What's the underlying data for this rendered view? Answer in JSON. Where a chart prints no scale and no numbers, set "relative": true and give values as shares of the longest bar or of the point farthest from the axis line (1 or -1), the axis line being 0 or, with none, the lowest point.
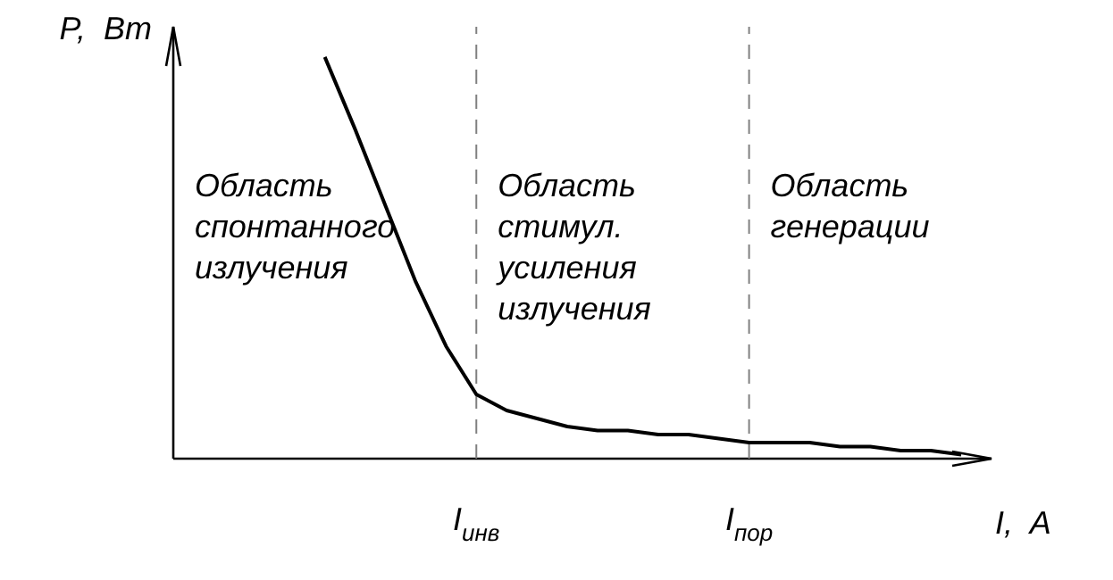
{
  "chart_data": {
    "type": "line",
    "relative": true,
    "xlabel": "I,  A",
    "ylabel": "P,  Вт",
    "marker": "none",
    "line_style": "solid",
    "categories": [
      null,
      null,
      null,
      null,
      null,
      null,
      null,
      null,
      null,
      null,
      "I$_{инв}$",
      null,
      null,
      null,
      null,
      null,
      null,
      null,
      null,
      "I$_{пор}$",
      null,
      null,
      null,
      null,
      null,
      null,
      null,
      null
    ],
    "series": [
      {
        "color": "#000000",
        "values": [
          null,
          null,
          null,
          null,
          null,
          1,
          0.82,
          0.63,
          0.44,
          0.28,
          0.16,
          0.12,
          0.1,
          0.08,
          0.07,
          0.07,
          0.06,
          0.06,
          0.05,
          0.04,
          0.04,
          0.04,
          0.03,
          0.03,
          0.02,
          0.02,
          0.01,
          null
        ]
      }
    ],
    "ref_lines": [
      {
        "axis": "x",
        "value": "I$_{инв}$",
        "color": "#808080",
        "line_style": "dashed"
      },
      {
        "axis": "x",
        "value": "I$_{пор}$",
        "color": "#808080",
        "line_style": "dashed"
      }
    ],
    "annotations": [
      "Область\nспонтанного\nизлучения",
      "Область\nстимул.\nусиления\nизлучения",
      "Область\nгенерации"
    ]
  }
}
